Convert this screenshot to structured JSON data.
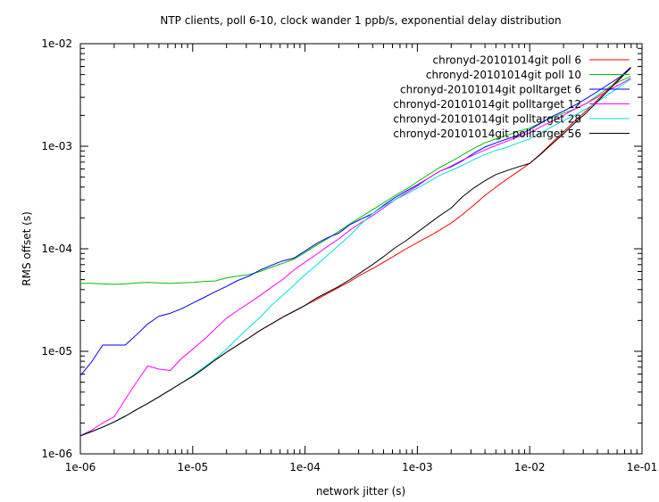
{
  "chart_data": {
    "type": "line",
    "title": "NTP clients, poll 6-10, clock wander 1 ppb/s, exponential delay distribution",
    "xlabel": "network jitter (s)",
    "ylabel": "RMS offset (s)",
    "xscale": "log",
    "yscale": "log",
    "xlim": [
      1e-06,
      0.1
    ],
    "ylim": [
      1e-06,
      0.01
    ],
    "grid": false,
    "legend_position": "top-right",
    "x_ticks": [
      {
        "value": 1e-06,
        "label": "1e-06"
      },
      {
        "value": 1e-05,
        "label": "1e-05"
      },
      {
        "value": 0.0001,
        "label": "1e-04"
      },
      {
        "value": 0.001,
        "label": "1e-03"
      },
      {
        "value": 0.01,
        "label": "1e-02"
      },
      {
        "value": 0.1,
        "label": "1e-01"
      }
    ],
    "y_ticks": [
      {
        "value": 1e-06,
        "label": "1e-06"
      },
      {
        "value": 1e-05,
        "label": "1e-05"
      },
      {
        "value": 0.0001,
        "label": "1e-04"
      },
      {
        "value": 0.001,
        "label": "1e-03"
      },
      {
        "value": 0.01,
        "label": "1e-02"
      }
    ],
    "x": [
      1e-06,
      1.26e-06,
      1.58e-06,
      2e-06,
      2.51e-06,
      3.16e-06,
      3.98e-06,
      5.01e-06,
      6.31e-06,
      7.94e-06,
      1e-05,
      1.26e-05,
      1.58e-05,
      2e-05,
      2.51e-05,
      3.16e-05,
      3.98e-05,
      5.01e-05,
      6.31e-05,
      7.94e-05,
      0.0001,
      0.000126,
      0.000158,
      0.0002,
      0.000251,
      0.000316,
      0.000398,
      0.000501,
      0.000631,
      0.000794,
      0.001,
      0.00126,
      0.00158,
      0.002,
      0.00251,
      0.00316,
      0.00398,
      0.00501,
      0.00631,
      0.00794,
      0.01,
      0.0126,
      0.0158,
      0.02,
      0.0251,
      0.0316,
      0.0398,
      0.0501,
      0.0631,
      0.0794
    ],
    "series": [
      {
        "name": "chronyd-20101014git poll 6",
        "color": "#ff0000",
        "values": [
          1.5e-06,
          1.65e-06,
          1.82e-06,
          2.05e-06,
          2.33e-06,
          2.7e-06,
          3.1e-06,
          3.6e-06,
          4.2e-06,
          4.9e-06,
          5.7e-06,
          6.8e-06,
          8.2e-06,
          9.8e-06,
          1.15e-05,
          1.35e-05,
          1.6e-05,
          1.85e-05,
          2.15e-05,
          2.45e-05,
          2.8e-05,
          3.2e-05,
          3.65e-05,
          4.2e-05,
          4.8e-05,
          5.6e-05,
          6.4e-05,
          7.4e-05,
          8.6e-05,
          0.0001,
          0.000115,
          0.000132,
          0.000152,
          0.000178,
          0.000215,
          0.000265,
          0.00033,
          0.0004,
          0.00048,
          0.00057,
          0.00068,
          0.00085,
          0.00108,
          0.00138,
          0.00176,
          0.0022,
          0.0028,
          0.0036,
          0.0046,
          0.0058
        ]
      },
      {
        "name": "chronyd-20101014git poll 10",
        "color": "#00c000",
        "values": [
          4.6e-05,
          4.6e-05,
          4.55e-05,
          4.5e-05,
          4.55e-05,
          4.65e-05,
          4.7e-05,
          4.65e-05,
          4.6e-05,
          4.65e-05,
          4.7e-05,
          4.8e-05,
          4.85e-05,
          5.2e-05,
          5.4e-05,
          5.6e-05,
          6e-05,
          6.6e-05,
          7.2e-05,
          7.9e-05,
          9.2e-05,
          0.000108,
          0.000125,
          0.000148,
          0.000175,
          0.000205,
          0.00024,
          0.00028,
          0.00033,
          0.00038,
          0.00045,
          0.00053,
          0.00062,
          0.00071,
          0.00082,
          0.00095,
          0.00108,
          0.00118,
          0.00128,
          0.0014,
          0.0015,
          0.0017,
          0.0019,
          0.0021,
          0.0023,
          0.0026,
          0.0031,
          0.0037,
          0.0043,
          0.0048
        ]
      },
      {
        "name": "chronyd-20101014git polltarget 6",
        "color": "#0000ff",
        "values": [
          5.8e-06,
          7.9e-06,
          1.15e-05,
          1.15e-05,
          1.15e-05,
          1.45e-05,
          1.85e-05,
          2.2e-05,
          2.35e-05,
          2.6e-05,
          2.95e-05,
          3.35e-05,
          3.8e-05,
          4.3e-05,
          4.9e-05,
          5.4e-05,
          6.2e-05,
          6.9e-05,
          7.6e-05,
          8.1e-05,
          9.5e-05,
          0.000112,
          0.000128,
          0.000142,
          0.000172,
          0.000195,
          0.00022,
          0.000265,
          0.000315,
          0.000365,
          0.00042,
          0.00049,
          0.00057,
          0.00063,
          0.00072,
          0.00085,
          0.00098,
          0.00108,
          0.00118,
          0.00128,
          0.00145,
          0.00168,
          0.00195,
          0.0022,
          0.0025,
          0.0029,
          0.0034,
          0.004,
          0.0047,
          0.0059
        ]
      },
      {
        "name": "chronyd-20101014git polltarget 12",
        "color": "#ff00ff",
        "values": [
          1.5e-06,
          1.7e-06,
          2e-06,
          2.3e-06,
          3.4e-06,
          5e-06,
          7.2e-06,
          6.7e-06,
          6.5e-06,
          8.5e-06,
          1.05e-05,
          1.3e-05,
          1.65e-05,
          2.1e-05,
          2.5e-05,
          2.95e-05,
          3.5e-05,
          4.2e-05,
          5e-05,
          6.2e-05,
          7.4e-05,
          8.8e-05,
          0.000105,
          0.000125,
          0.000152,
          0.00018,
          0.00021,
          0.00025,
          0.0003,
          0.00035,
          0.00041,
          0.00049,
          0.00057,
          0.00064,
          0.00073,
          0.00082,
          0.00092,
          0.00102,
          0.00112,
          0.00124,
          0.00135,
          0.00155,
          0.00175,
          0.002,
          0.0023,
          0.0026,
          0.003,
          0.0035,
          0.004,
          0.0046
        ]
      },
      {
        "name": "chronyd-20101014git polltarget 28",
        "color": "#00e0e0",
        "values": [
          1.5e-06,
          1.65e-06,
          1.82e-06,
          2.05e-06,
          2.33e-06,
          2.7e-06,
          3.1e-06,
          3.6e-06,
          4.2e-06,
          4.9e-06,
          5.8e-06,
          7e-06,
          8.4e-06,
          1.05e-05,
          1.35e-05,
          1.7e-05,
          2.15e-05,
          2.8e-05,
          3.5e-05,
          4.4e-05,
          5.6e-05,
          6.9e-05,
          8.6e-05,
          0.000108,
          0.000135,
          0.000175,
          0.00022,
          0.00026,
          0.0003,
          0.00034,
          0.00039,
          0.00045,
          0.00052,
          0.00058,
          0.00065,
          0.00074,
          0.00083,
          0.00091,
          0.00098,
          0.00108,
          0.00118,
          0.00135,
          0.00155,
          0.00178,
          0.002,
          0.0023,
          0.0027,
          0.0032,
          0.0038,
          0.0045
        ]
      },
      {
        "name": "chronyd-20101014git polltarget 56",
        "color": "#000000",
        "values": [
          1.5e-06,
          1.65e-06,
          1.82e-06,
          2.05e-06,
          2.33e-06,
          2.7e-06,
          3.1e-06,
          3.6e-06,
          4.2e-06,
          4.9e-06,
          5.7e-06,
          6.8e-06,
          8.2e-06,
          9.8e-06,
          1.15e-05,
          1.35e-05,
          1.6e-05,
          1.85e-05,
          2.15e-05,
          2.45e-05,
          2.8e-05,
          3.3e-05,
          3.75e-05,
          4.3e-05,
          5e-05,
          5.9e-05,
          7e-05,
          8.4e-05,
          0.000102,
          0.00012,
          0.000145,
          0.000175,
          0.00021,
          0.00025,
          0.00032,
          0.00039,
          0.00046,
          0.00053,
          0.00058,
          0.00063,
          0.00068,
          0.00084,
          0.00105,
          0.00132,
          0.00168,
          0.0021,
          0.0027,
          0.0035,
          0.0045,
          0.0058
        ]
      }
    ]
  }
}
